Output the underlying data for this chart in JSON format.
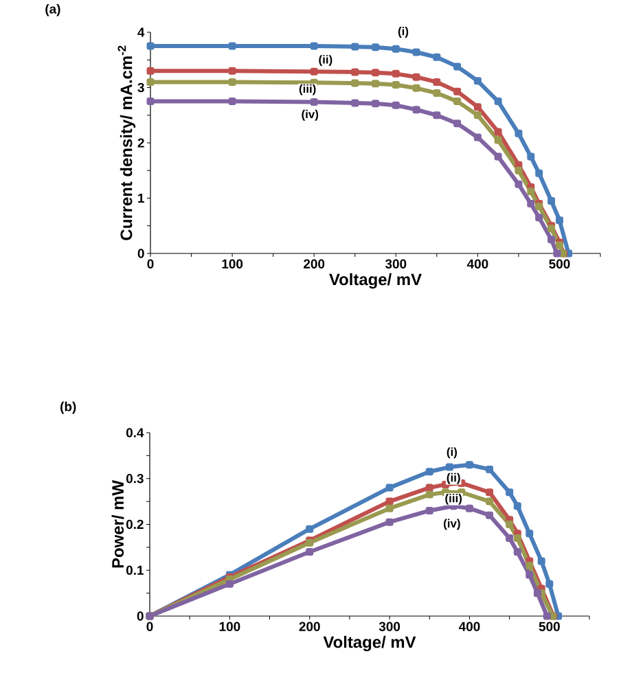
{
  "chart_data": [
    {
      "type": "line",
      "title": "(a)",
      "xlabel": "Voltage/ mV",
      "ylabel": "Current density/ mA.cm$^{-2}$",
      "marker": "square",
      "grid": false,
      "xlim": [
        0,
        550
      ],
      "ylim": [
        0,
        4
      ],
      "xticks": [
        0,
        {
          "value": 50,
          "label": null
        },
        100,
        {
          "value": 150,
          "label": null
        },
        200,
        {
          "value": 250,
          "label": null
        },
        300,
        {
          "value": 350,
          "label": null
        },
        400,
        {
          "value": 450,
          "label": null
        },
        500,
        {
          "value": 550,
          "label": null
        }
      ],
      "yticks": [
        0,
        {
          "value": 0.5,
          "label": null
        },
        1,
        {
          "value": 1.5,
          "label": null
        },
        2,
        {
          "value": 2.5,
          "label": null
        },
        3,
        {
          "value": 3.5,
          "label": null
        },
        4
      ],
      "series": [
        {
          "color": "#4a7ebb",
          "x": [
            0,
            100,
            200,
            250,
            275,
            300,
            325,
            350,
            375,
            400,
            425,
            450,
            465,
            475,
            490,
            500,
            511
          ],
          "values": [
            3.75,
            3.75,
            3.75,
            3.74,
            3.73,
            3.7,
            3.64,
            3.55,
            3.38,
            3.12,
            2.75,
            2.17,
            1.75,
            1.45,
            0.95,
            0.6,
            0
          ]
        },
        {
          "color": "#c0504d",
          "x": [
            0,
            100,
            200,
            250,
            275,
            300,
            325,
            350,
            375,
            400,
            425,
            450,
            465,
            475,
            490,
            500,
            505
          ],
          "values": [
            3.3,
            3.3,
            3.29,
            3.28,
            3.27,
            3.25,
            3.19,
            3.1,
            2.93,
            2.65,
            2.2,
            1.6,
            1.2,
            0.9,
            0.5,
            0.2,
            0
          ]
        },
        {
          "color": "#9a9a50",
          "x": [
            0,
            100,
            200,
            250,
            275,
            300,
            325,
            350,
            375,
            400,
            425,
            450,
            465,
            475,
            490,
            500,
            504
          ],
          "values": [
            3.1,
            3.1,
            3.09,
            3.08,
            3.07,
            3.05,
            2.99,
            2.9,
            2.75,
            2.5,
            2.05,
            1.5,
            1.12,
            0.85,
            0.45,
            0.15,
            0
          ]
        },
        {
          "color": "#8064a2",
          "x": [
            0,
            100,
            200,
            250,
            275,
            300,
            325,
            350,
            375,
            400,
            425,
            450,
            465,
            475,
            490,
            497
          ],
          "values": [
            2.75,
            2.75,
            2.74,
            2.72,
            2.71,
            2.68,
            2.6,
            2.5,
            2.35,
            2.1,
            1.75,
            1.25,
            0.9,
            0.65,
            0.25,
            0
          ]
        }
      ],
      "annotations": [
        {
          "text": "(i)",
          "x": 309,
          "y": 4.0
        },
        {
          "text": "(ii)",
          "x": 214,
          "y": 3.49
        },
        {
          "text": "(iii)",
          "x": 192,
          "y": 2.96
        },
        {
          "text": "(iv)",
          "x": 195,
          "y": 2.5
        }
      ]
    },
    {
      "type": "line",
      "title": "(b)",
      "xlabel": "Voltage/ mV",
      "ylabel": "Power/ mW",
      "marker": "square",
      "grid": false,
      "xlim": [
        0,
        550
      ],
      "ylim": [
        0,
        0.4
      ],
      "xticks": [
        0,
        {
          "value": 50,
          "label": null
        },
        100,
        {
          "value": 150,
          "label": null
        },
        200,
        {
          "value": 250,
          "label": null
        },
        300,
        {
          "value": 350,
          "label": null
        },
        400,
        {
          "value": 450,
          "label": null
        },
        500,
        {
          "value": 550,
          "label": null
        }
      ],
      "yticks": [
        0,
        {
          "value": 0.05,
          "label": null
        },
        0.1,
        {
          "value": 0.15,
          "label": null
        },
        0.2,
        {
          "value": 0.25,
          "label": null
        },
        0.3,
        {
          "value": 0.35,
          "label": null
        },
        0.4
      ],
      "series": [
        {
          "color": "#4a7ebb",
          "x": [
            0,
            100,
            200,
            300,
            350,
            375,
            400,
            425,
            450,
            460,
            475,
            490,
            500,
            511
          ],
          "values": [
            0,
            0.09,
            0.19,
            0.28,
            0.315,
            0.325,
            0.33,
            0.32,
            0.27,
            0.24,
            0.18,
            0.12,
            0.07,
            0
          ]
        },
        {
          "color": "#c0504d",
          "x": [
            0,
            100,
            200,
            300,
            350,
            370,
            390,
            425,
            450,
            460,
            475,
            490,
            505
          ],
          "values": [
            0,
            0.085,
            0.165,
            0.25,
            0.28,
            0.287,
            0.29,
            0.27,
            0.21,
            0.18,
            0.12,
            0.06,
            0
          ]
        },
        {
          "color": "#9a9a50",
          "x": [
            0,
            100,
            200,
            300,
            350,
            370,
            390,
            425,
            450,
            460,
            475,
            490,
            504
          ],
          "values": [
            0,
            0.08,
            0.16,
            0.235,
            0.265,
            0.27,
            0.27,
            0.25,
            0.2,
            0.17,
            0.11,
            0.05,
            0
          ]
        },
        {
          "color": "#8064a2",
          "x": [
            0,
            100,
            200,
            300,
            350,
            380,
            400,
            425,
            450,
            460,
            475,
            485,
            497
          ],
          "values": [
            0,
            0.07,
            0.14,
            0.205,
            0.23,
            0.24,
            0.235,
            0.22,
            0.17,
            0.14,
            0.09,
            0.05,
            0
          ]
        }
      ],
      "annotations": [
        {
          "text": "(i)",
          "x": 378,
          "y": 0.356
        },
        {
          "text": "(ii)",
          "x": 380,
          "y": 0.3
        },
        {
          "text": "(iii)",
          "x": 380,
          "y": 0.255
        },
        {
          "text": "(iv)",
          "x": 378,
          "y": 0.2
        }
      ]
    }
  ]
}
